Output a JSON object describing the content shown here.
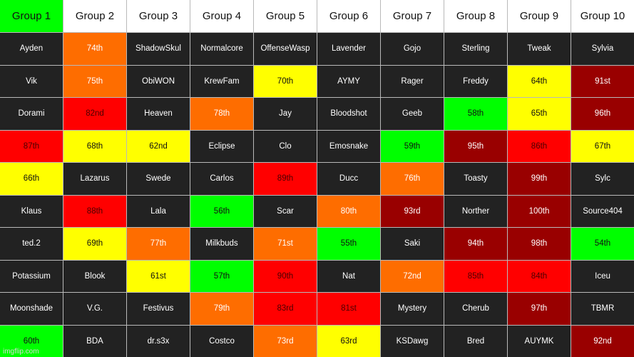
{
  "colors": {
    "dark": "#222222",
    "header": "#ffffff",
    "orange": "#fe6d00",
    "yellow": "#ffff00",
    "red": "#ff0000",
    "green": "#00ff00",
    "maroon": "#990000"
  },
  "headers": [
    {
      "label": "Group 1",
      "color": "green"
    },
    {
      "label": "Group 2",
      "color": "header"
    },
    {
      "label": "Group 3",
      "color": "header"
    },
    {
      "label": "Group 4",
      "color": "header"
    },
    {
      "label": "Group 5",
      "color": "header"
    },
    {
      "label": "Group 6",
      "color": "header"
    },
    {
      "label": "Group 7",
      "color": "header"
    },
    {
      "label": "Group 8",
      "color": "header"
    },
    {
      "label": "Group 9",
      "color": "header"
    },
    {
      "label": "Group 10",
      "color": "header"
    }
  ],
  "rows": [
    [
      {
        "text": "Ayden",
        "color": "dark"
      },
      {
        "text": "74th",
        "color": "orange"
      },
      {
        "text": "ShadowSkul",
        "color": "dark"
      },
      {
        "text": "Normalcore",
        "color": "dark"
      },
      {
        "text": "OffenseWasp",
        "color": "dark"
      },
      {
        "text": "Lavender",
        "color": "dark"
      },
      {
        "text": "Gojo",
        "color": "dark"
      },
      {
        "text": "Sterling",
        "color": "dark"
      },
      {
        "text": "Tweak",
        "color": "dark"
      },
      {
        "text": "Sylvia",
        "color": "dark"
      }
    ],
    [
      {
        "text": "Vik",
        "color": "dark"
      },
      {
        "text": "75th",
        "color": "orange"
      },
      {
        "text": "ObiWON",
        "color": "dark"
      },
      {
        "text": "KrewFam",
        "color": "dark"
      },
      {
        "text": "70th",
        "color": "yellow"
      },
      {
        "text": "AYMY",
        "color": "dark"
      },
      {
        "text": "Rager",
        "color": "dark"
      },
      {
        "text": "Freddy",
        "color": "dark"
      },
      {
        "text": "64th",
        "color": "yellow"
      },
      {
        "text": "91st",
        "color": "maroon"
      }
    ],
    [
      {
        "text": "Dorami",
        "color": "dark"
      },
      {
        "text": "82nd",
        "color": "red"
      },
      {
        "text": "Heaven",
        "color": "dark"
      },
      {
        "text": "78th",
        "color": "orange"
      },
      {
        "text": "Jay",
        "color": "dark"
      },
      {
        "text": "Bloodshot",
        "color": "dark"
      },
      {
        "text": "Geeb",
        "color": "dark"
      },
      {
        "text": "58th",
        "color": "green"
      },
      {
        "text": "65th",
        "color": "yellow"
      },
      {
        "text": "96th",
        "color": "maroon"
      }
    ],
    [
      {
        "text": "87th",
        "color": "red"
      },
      {
        "text": "68th",
        "color": "yellow"
      },
      {
        "text": "62nd",
        "color": "yellow"
      },
      {
        "text": "Eclipse",
        "color": "dark"
      },
      {
        "text": "Clo",
        "color": "dark"
      },
      {
        "text": "Emosnake",
        "color": "dark"
      },
      {
        "text": "59th",
        "color": "green"
      },
      {
        "text": "95th",
        "color": "maroon"
      },
      {
        "text": "86th",
        "color": "red"
      },
      {
        "text": "67th",
        "color": "yellow"
      }
    ],
    [
      {
        "text": "66th",
        "color": "yellow"
      },
      {
        "text": "Lazarus",
        "color": "dark"
      },
      {
        "text": "Swede",
        "color": "dark"
      },
      {
        "text": "Carlos",
        "color": "dark"
      },
      {
        "text": "89th",
        "color": "red"
      },
      {
        "text": "Ducc",
        "color": "dark"
      },
      {
        "text": "76th",
        "color": "orange"
      },
      {
        "text": "Toasty",
        "color": "dark"
      },
      {
        "text": "99th",
        "color": "maroon"
      },
      {
        "text": "Sylc",
        "color": "dark"
      }
    ],
    [
      {
        "text": "Klaus",
        "color": "dark"
      },
      {
        "text": "88th",
        "color": "red"
      },
      {
        "text": "Lala",
        "color": "dark"
      },
      {
        "text": "56th",
        "color": "green"
      },
      {
        "text": "Scar",
        "color": "dark"
      },
      {
        "text": "80th",
        "color": "orange"
      },
      {
        "text": "93rd",
        "color": "maroon"
      },
      {
        "text": "Norther",
        "color": "dark"
      },
      {
        "text": "100th",
        "color": "maroon"
      },
      {
        "text": "Source404",
        "color": "dark"
      }
    ],
    [
      {
        "text": "ted.2",
        "color": "dark"
      },
      {
        "text": "69th",
        "color": "yellow"
      },
      {
        "text": "77th",
        "color": "orange"
      },
      {
        "text": "Milkbuds",
        "color": "dark"
      },
      {
        "text": "71st",
        "color": "orange"
      },
      {
        "text": "55th",
        "color": "green"
      },
      {
        "text": "Saki",
        "color": "dark"
      },
      {
        "text": "94th",
        "color": "maroon"
      },
      {
        "text": "98th",
        "color": "maroon"
      },
      {
        "text": "54th",
        "color": "green"
      }
    ],
    [
      {
        "text": "Potassium",
        "color": "dark"
      },
      {
        "text": "Blook",
        "color": "dark"
      },
      {
        "text": "61st",
        "color": "yellow"
      },
      {
        "text": "57th",
        "color": "green"
      },
      {
        "text": "90th",
        "color": "red"
      },
      {
        "text": "Nat",
        "color": "dark"
      },
      {
        "text": "72nd",
        "color": "orange"
      },
      {
        "text": "85th",
        "color": "red"
      },
      {
        "text": "84th",
        "color": "red"
      },
      {
        "text": "Iceu",
        "color": "dark"
      }
    ],
    [
      {
        "text": "Moonshade",
        "color": "dark"
      },
      {
        "text": "V.G.",
        "color": "dark"
      },
      {
        "text": "Festivus",
        "color": "dark"
      },
      {
        "text": "79th",
        "color": "orange"
      },
      {
        "text": "83rd",
        "color": "red"
      },
      {
        "text": "81st",
        "color": "red"
      },
      {
        "text": "Mystery",
        "color": "dark"
      },
      {
        "text": "Cherub",
        "color": "dark"
      },
      {
        "text": "97th",
        "color": "maroon"
      },
      {
        "text": "TBMR",
        "color": "dark"
      }
    ],
    [
      {
        "text": "60th",
        "color": "green"
      },
      {
        "text": "BDA",
        "color": "dark"
      },
      {
        "text": "dr.s3x",
        "color": "dark"
      },
      {
        "text": "Costco",
        "color": "dark"
      },
      {
        "text": "73rd",
        "color": "orange"
      },
      {
        "text": "63rd",
        "color": "yellow"
      },
      {
        "text": "KSDawg",
        "color": "dark"
      },
      {
        "text": "Bred",
        "color": "dark"
      },
      {
        "text": "AUYMK",
        "color": "dark"
      },
      {
        "text": "92nd",
        "color": "maroon"
      }
    ]
  ],
  "watermark": "imgflip.com"
}
